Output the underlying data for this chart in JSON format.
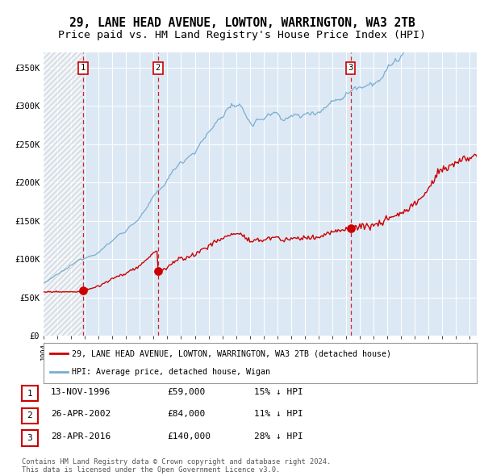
{
  "title": "29, LANE HEAD AVENUE, LOWTON, WARRINGTON, WA3 2TB",
  "subtitle": "Price paid vs. HM Land Registry's House Price Index (HPI)",
  "ylim": [
    0,
    370000
  ],
  "xlim_start": 1994.0,
  "xlim_end": 2025.5,
  "yticks": [
    0,
    50000,
    100000,
    150000,
    200000,
    250000,
    300000,
    350000
  ],
  "ytick_labels": [
    "£0",
    "£50K",
    "£100K",
    "£150K",
    "£200K",
    "£250K",
    "£300K",
    "£350K"
  ],
  "background_color": "#ffffff",
  "plot_bg_color": "#dce9f5",
  "hatch_region_end": 1996.75,
  "sale_dates": [
    1996.87,
    2002.32,
    2016.32
  ],
  "sale_prices": [
    59000,
    84000,
    140000
  ],
  "sale_labels": [
    "1",
    "2",
    "3"
  ],
  "legend_red_label": "29, LANE HEAD AVENUE, LOWTON, WARRINGTON, WA3 2TB (detached house)",
  "legend_blue_label": "HPI: Average price, detached house, Wigan",
  "table_rows": [
    {
      "num": "1",
      "date": "13-NOV-1996",
      "price": "£59,000",
      "pct": "15% ↓ HPI"
    },
    {
      "num": "2",
      "date": "26-APR-2002",
      "price": "£84,000",
      "pct": "11% ↓ HPI"
    },
    {
      "num": "3",
      "date": "28-APR-2016",
      "price": "£140,000",
      "pct": "28% ↓ HPI"
    }
  ],
  "footer": "Contains HM Land Registry data © Crown copyright and database right 2024.\nThis data is licensed under the Open Government Licence v3.0.",
  "red_color": "#cc0000",
  "blue_color": "#7aadcf",
  "grid_color": "#ffffff",
  "title_fontsize": 10.5,
  "subtitle_fontsize": 9.5,
  "tick_fontsize": 7.5
}
